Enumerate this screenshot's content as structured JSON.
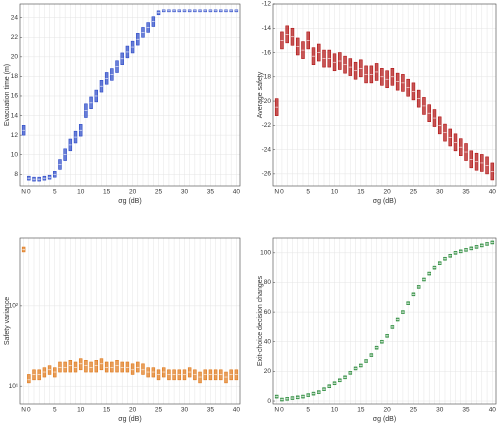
{
  "chart_data": [
    {
      "type": "box",
      "ylabel": "Evacuation time (m)",
      "xlabel": "σg (dB)",
      "color": "#2a48c8",
      "grid": true,
      "categories": [
        "N",
        "0",
        null,
        null,
        null,
        null,
        "5",
        null,
        null,
        null,
        null,
        "10",
        null,
        null,
        null,
        null,
        "15",
        null,
        null,
        null,
        null,
        "20",
        null,
        null,
        null,
        null,
        "25",
        null,
        null,
        null,
        null,
        "30",
        null,
        null,
        null,
        null,
        "35",
        null,
        null,
        null,
        null,
        "40"
      ],
      "median": [
        12.5,
        7.6,
        7.5,
        7.5,
        7.6,
        7.7,
        8.0,
        9.0,
        10.0,
        11.0,
        11.8,
        12.5,
        14.5,
        15.3,
        16.0,
        17.0,
        17.8,
        18.2,
        19.0,
        19.8,
        20.5,
        21.0,
        21.8,
        22.5,
        23.0,
        23.6,
        24.5,
        24.7,
        24.7,
        24.7,
        24.7,
        24.7,
        24.7,
        24.7,
        24.7,
        24.7,
        24.7,
        24.7,
        24.7,
        24.7,
        24.7,
        24.7
      ],
      "q1": [
        12.0,
        7.4,
        7.3,
        7.3,
        7.4,
        7.5,
        7.7,
        8.5,
        9.4,
        10.4,
        11.2,
        11.9,
        13.8,
        14.7,
        15.4,
        16.4,
        17.2,
        17.6,
        18.4,
        19.2,
        19.9,
        20.4,
        21.2,
        22.0,
        22.5,
        23.1,
        24.3,
        24.6,
        24.6,
        24.6,
        24.6,
        24.6,
        24.6,
        24.6,
        24.6,
        24.6,
        24.6,
        24.6,
        24.6,
        24.6,
        24.6,
        24.6
      ],
      "q3": [
        13.0,
        7.8,
        7.7,
        7.7,
        7.8,
        7.9,
        8.3,
        9.5,
        10.6,
        11.6,
        12.4,
        13.1,
        15.2,
        15.9,
        16.6,
        17.6,
        18.4,
        18.8,
        19.6,
        20.4,
        21.1,
        21.6,
        22.4,
        23.0,
        23.5,
        24.1,
        24.7,
        24.8,
        24.8,
        24.8,
        24.8,
        24.8,
        24.8,
        24.8,
        24.8,
        24.8,
        24.8,
        24.8,
        24.8,
        24.8,
        24.8,
        24.8
      ],
      "ylim": [
        6.8,
        25.4
      ],
      "yticks": [
        8,
        10,
        12,
        14,
        16,
        18,
        20,
        22,
        24
      ]
    },
    {
      "type": "box",
      "ylabel": "Average safety",
      "xlabel": "σg (dB)",
      "color": "#b01010",
      "grid": true,
      "categories": [
        "N",
        "0",
        null,
        null,
        null,
        null,
        "5",
        null,
        null,
        null,
        null,
        "10",
        null,
        null,
        null,
        null,
        "15",
        null,
        null,
        null,
        null,
        "20",
        null,
        null,
        null,
        null,
        "25",
        null,
        null,
        null,
        null,
        "30",
        null,
        null,
        null,
        null,
        "35",
        null,
        null,
        null,
        null,
        "40"
      ],
      "median": [
        -20.5,
        -15,
        -14.5,
        -14.7,
        -15.5,
        -15.8,
        -15,
        -16.3,
        -16,
        -16.5,
        -16.5,
        -16.8,
        -16.7,
        -17,
        -17.2,
        -17.5,
        -17.3,
        -17.8,
        -17.8,
        -17.6,
        -18,
        -18.2,
        -18,
        -18.4,
        -18.5,
        -18.9,
        -19.2,
        -19.8,
        -20.4,
        -21,
        -21.4,
        -22,
        -22.6,
        -23,
        -23.4,
        -23.8,
        -24.2,
        -24.8,
        -25,
        -25.1,
        -25.3,
        -25.8
      ],
      "q1": [
        -21.2,
        -15.7,
        -15.2,
        -15.4,
        -16.2,
        -16.5,
        -15.7,
        -17,
        -16.7,
        -17.2,
        -17.2,
        -17.5,
        -17.4,
        -17.7,
        -17.9,
        -18.2,
        -18,
        -18.5,
        -18.5,
        -18.3,
        -18.7,
        -18.9,
        -18.7,
        -19.1,
        -19.2,
        -19.6,
        -19.9,
        -20.5,
        -21.1,
        -21.7,
        -22.1,
        -22.7,
        -23.3,
        -23.7,
        -24.1,
        -24.5,
        -24.9,
        -25.5,
        -25.7,
        -25.8,
        -26,
        -26.5
      ],
      "q3": [
        -19.8,
        -14.3,
        -13.8,
        -14,
        -14.8,
        -15.1,
        -14.3,
        -15.6,
        -15.3,
        -15.8,
        -15.8,
        -16.1,
        -16,
        -16.3,
        -16.5,
        -16.8,
        -16.6,
        -17.1,
        -17.1,
        -16.9,
        -17.3,
        -17.5,
        -17.3,
        -17.7,
        -17.8,
        -18.2,
        -18.5,
        -19.1,
        -19.7,
        -20.3,
        -20.7,
        -21.3,
        -21.9,
        -22.3,
        -22.7,
        -23.1,
        -23.5,
        -24.1,
        -24.3,
        -24.4,
        -24.6,
        -25.1
      ],
      "ylim": [
        -27,
        -12
      ],
      "yticks": [
        -26,
        -24,
        -22,
        -20,
        -18,
        -16,
        -14,
        -12
      ]
    },
    {
      "type": "box",
      "ylabel": "Safety variance",
      "xlabel": "σg (dB)",
      "color": "#e07818",
      "grid": true,
      "yscale": "log",
      "categories": [
        "N",
        "0",
        null,
        null,
        null,
        null,
        "5",
        null,
        null,
        null,
        null,
        "10",
        null,
        null,
        null,
        null,
        "15",
        null,
        null,
        null,
        null,
        "20",
        null,
        null,
        null,
        null,
        "25",
        null,
        null,
        null,
        null,
        "30",
        null,
        null,
        null,
        null,
        "35",
        null,
        null,
        null,
        null,
        "40"
      ],
      "median": [
        500,
        12,
        14,
        14,
        15,
        16,
        15,
        17,
        17,
        18,
        17,
        19,
        18,
        17,
        18,
        19,
        17,
        17,
        18,
        17,
        17,
        16,
        17,
        16,
        15,
        15,
        14,
        15,
        14,
        14,
        14,
        14,
        15,
        14,
        13,
        14,
        14,
        14,
        14,
        13,
        14,
        14
      ],
      "q1": [
        470,
        11,
        12,
        12,
        13,
        14,
        13,
        15,
        15,
        15,
        15,
        16,
        15,
        15,
        15,
        16,
        15,
        15,
        15,
        15,
        15,
        14,
        15,
        14,
        13,
        13,
        12,
        13,
        12,
        12,
        12,
        12,
        13,
        12,
        11,
        12,
        12,
        12,
        12,
        11,
        12,
        12
      ],
      "q3": [
        540,
        14,
        16,
        16,
        17,
        18,
        17,
        20,
        20,
        21,
        20,
        22,
        21,
        20,
        21,
        22,
        20,
        20,
        21,
        20,
        20,
        19,
        20,
        19,
        17,
        17,
        16,
        17,
        16,
        16,
        16,
        16,
        17,
        16,
        15,
        16,
        16,
        16,
        16,
        15,
        16,
        16
      ],
      "ylim": [
        6,
        700
      ],
      "yticks": [
        {
          "value": 10,
          "label": "10¹"
        },
        {
          "value": 100,
          "label": "10²"
        }
      ]
    },
    {
      "type": "box",
      "ylabel": "Exit-choice decision changes",
      "xlabel": "σg (dB)",
      "color": "#2a8a3a",
      "grid": true,
      "categories": [
        "N",
        "0",
        null,
        null,
        null,
        null,
        "5",
        null,
        null,
        null,
        null,
        "10",
        null,
        null,
        null,
        null,
        "15",
        null,
        null,
        null,
        null,
        "20",
        null,
        null,
        null,
        null,
        "25",
        null,
        null,
        null,
        null,
        "30",
        null,
        null,
        null,
        null,
        "35",
        null,
        null,
        null,
        null,
        "40"
      ],
      "median": [
        3,
        1,
        1.5,
        2,
        2.5,
        3,
        4,
        5,
        6,
        8,
        10,
        12,
        14,
        16,
        19,
        22,
        24,
        27,
        31,
        36,
        40,
        44,
        50,
        55,
        60,
        66,
        72,
        77,
        82,
        86,
        90,
        93,
        96,
        98,
        100,
        101,
        102,
        103,
        104,
        105,
        106,
        107
      ],
      "q1": [
        2,
        0,
        0.5,
        1,
        1.5,
        2,
        3,
        4,
        5,
        7,
        9,
        11,
        13,
        15,
        18,
        21,
        23,
        26,
        30,
        35,
        39,
        43,
        49,
        54,
        59,
        65,
        71,
        76,
        81,
        85,
        89,
        92,
        95,
        97,
        99,
        100,
        101,
        102,
        103,
        104,
        105,
        106
      ],
      "q3": [
        4,
        2,
        2.5,
        3,
        3.5,
        4,
        5,
        6,
        7,
        9,
        11,
        13,
        15,
        17,
        20,
        23,
        25,
        28,
        32,
        37,
        41,
        45,
        51,
        56,
        61,
        67,
        73,
        78,
        83,
        87,
        91,
        94,
        97,
        99,
        101,
        102,
        103,
        104,
        105,
        106,
        107,
        108
      ],
      "ylim": [
        -2,
        110
      ],
      "yticks": [
        0,
        20,
        40,
        60,
        80,
        100
      ]
    }
  ]
}
